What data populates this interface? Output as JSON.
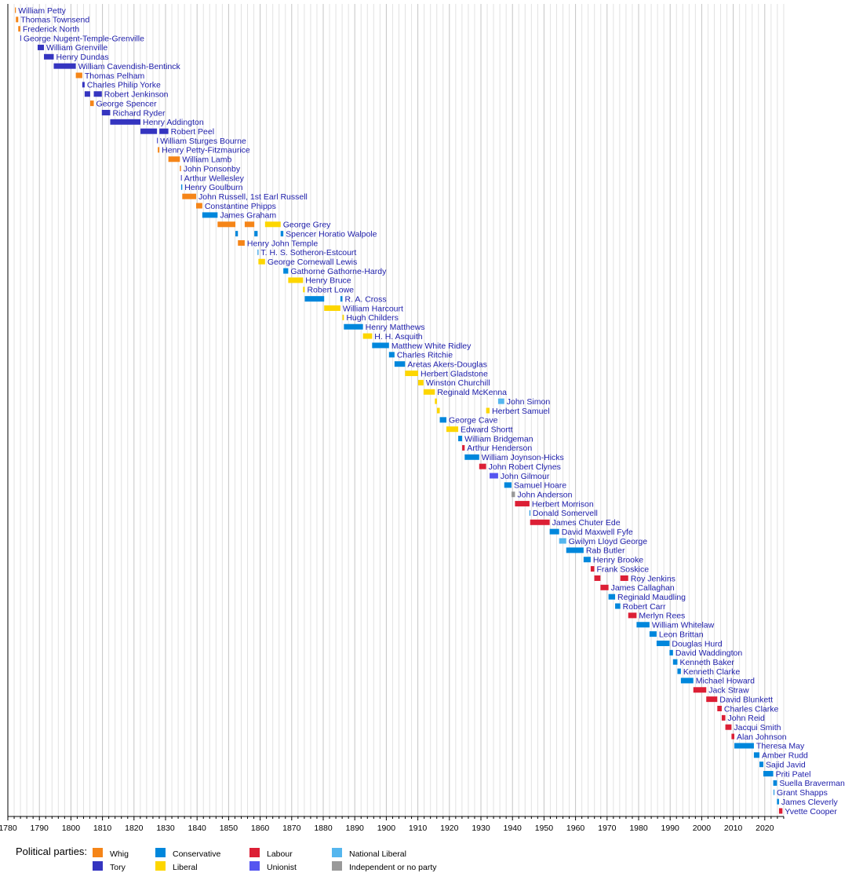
{
  "chart_data": {
    "type": "timeline",
    "title": "",
    "xlim": [
      1780,
      2026
    ],
    "x_ticks": [
      "1780",
      "1790",
      "1800",
      "1810",
      "1820",
      "1830",
      "1840",
      "1850",
      "1860",
      "1870",
      "1880",
      "1890",
      "1900",
      "1910",
      "1920",
      "1930",
      "1940",
      "1950",
      "1960",
      "1970",
      "1980",
      "1990",
      "2000",
      "2010",
      "2020"
    ],
    "grid": true,
    "legend": {
      "title": "Political parties:",
      "placement": "bottom-left",
      "entries": [
        {
          "name": "Whig",
          "color": "#f58518"
        },
        {
          "name": "Tory",
          "color": "#3535c0"
        },
        {
          "name": "Conservative",
          "color": "#0087dc"
        },
        {
          "name": "Liberal",
          "color": "#fdd600"
        },
        {
          "name": "Labour",
          "color": "#dc1f35"
        },
        {
          "name": "Unionist",
          "color": "#5555f0"
        },
        {
          "name": "National Liberal",
          "color": "#55b6ee"
        },
        {
          "name": "Independent or no party",
          "color": "#999999"
        }
      ]
    },
    "rows": [
      {
        "name": "William Petty",
        "segments": [
          [
            1782.25,
            1782.55,
            "Whig"
          ]
        ]
      },
      {
        "name": "Thomas Townsend",
        "segments": [
          [
            1782.55,
            1783.3,
            "Whig"
          ]
        ]
      },
      {
        "name": "Frederick North",
        "segments": [
          [
            1783.3,
            1783.95,
            "Whig"
          ]
        ]
      },
      {
        "name": "George Nugent-Temple-Grenville",
        "segments": [
          [
            1783.95,
            1784.0,
            "Tory"
          ]
        ]
      },
      {
        "name": "William Grenville",
        "segments": [
          [
            1789.45,
            1791.45,
            "Tory"
          ]
        ]
      },
      {
        "name": "Henry Dundas",
        "segments": [
          [
            1791.45,
            1794.55,
            "Tory"
          ]
        ]
      },
      {
        "name": "William Cavendish-Bentinck",
        "segments": [
          [
            1794.55,
            1801.55,
            "Tory"
          ]
        ]
      },
      {
        "name": "Thomas Pelham",
        "segments": [
          [
            1801.55,
            1803.6,
            "Whig"
          ]
        ]
      },
      {
        "name": "Charles Philip Yorke",
        "segments": [
          [
            1803.6,
            1804.35,
            "Tory"
          ]
        ]
      },
      {
        "name": "Robert Jenkinson",
        "segments": [
          [
            1804.35,
            1806.1,
            "Tory"
          ],
          [
            1807.25,
            1809.8,
            "Tory"
          ]
        ]
      },
      {
        "name": "George Spencer",
        "segments": [
          [
            1806.1,
            1807.25,
            "Whig"
          ]
        ]
      },
      {
        "name": "Richard Ryder",
        "segments": [
          [
            1809.8,
            1812.45,
            "Tory"
          ]
        ]
      },
      {
        "name": "Henry Addington",
        "segments": [
          [
            1812.45,
            1822.05,
            "Tory"
          ]
        ]
      },
      {
        "name": "Robert Peel",
        "segments": [
          [
            1822.05,
            1827.3,
            "Tory"
          ],
          [
            1828.05,
            1830.9,
            "Tory"
          ]
        ]
      },
      {
        "name": "William Sturges Bourne",
        "segments": [
          [
            1827.3,
            1827.55,
            "Tory"
          ]
        ]
      },
      {
        "name": "Henry Petty-Fitzmaurice",
        "segments": [
          [
            1827.55,
            1828.05,
            "Whig"
          ]
        ]
      },
      {
        "name": "William Lamb",
        "segments": [
          [
            1830.9,
            1834.55,
            "Whig"
          ]
        ]
      },
      {
        "name": "John Ponsonby",
        "segments": [
          [
            1834.55,
            1834.9,
            "Whig"
          ]
        ]
      },
      {
        "name": "Arthur Wellesley",
        "segments": [
          [
            1834.9,
            1834.95,
            "Tory"
          ]
        ]
      },
      {
        "name": "Henry Goulburn",
        "segments": [
          [
            1834.95,
            1835.3,
            "Conservative"
          ]
        ]
      },
      {
        "name": "John Russell, 1st Earl Russell",
        "segments": [
          [
            1835.3,
            1839.7,
            "Whig"
          ]
        ]
      },
      {
        "name": "Constantine Phipps",
        "segments": [
          [
            1839.7,
            1841.65,
            "Whig"
          ]
        ]
      },
      {
        "name": "James Graham",
        "segments": [
          [
            1841.65,
            1846.5,
            "Conservative"
          ]
        ]
      },
      {
        "name": "George Grey",
        "segments": [
          [
            1846.5,
            1852.15,
            "Whig"
          ],
          [
            1855.1,
            1858.15,
            "Whig"
          ],
          [
            1861.55,
            1866.5,
            "Liberal"
          ]
        ]
      },
      {
        "name": "Spencer Horatio Walpole",
        "segments": [
          [
            1852.15,
            1852.95,
            "Conservative"
          ],
          [
            1858.15,
            1859.2,
            "Conservative"
          ],
          [
            1866.5,
            1867.35,
            "Conservative"
          ]
        ]
      },
      {
        "name": "Henry John Temple",
        "segments": [
          [
            1852.95,
            1855.1,
            "Whig"
          ]
        ]
      },
      {
        "name": "T. H. S. Sotheron-Estcourt",
        "segments": [
          [
            1859.2,
            1859.45,
            "Conservative"
          ]
        ]
      },
      {
        "name": "George Cornewall Lewis",
        "segments": [
          [
            1859.45,
            1861.55,
            "Liberal"
          ]
        ]
      },
      {
        "name": "Gathorne Gathorne-Hardy",
        "segments": [
          [
            1867.35,
            1868.9,
            "Conservative"
          ]
        ]
      },
      {
        "name": "Henry Bruce",
        "segments": [
          [
            1868.9,
            1873.6,
            "Liberal"
          ]
        ]
      },
      {
        "name": "Robert Lowe",
        "segments": [
          [
            1873.6,
            1874.15,
            "Liberal"
          ]
        ]
      },
      {
        "name": "R. A. Cross",
        "segments": [
          [
            1874.15,
            1880.3,
            "Conservative"
          ],
          [
            1885.45,
            1886.1,
            "Conservative"
          ]
        ]
      },
      {
        "name": "William Harcourt",
        "segments": [
          [
            1880.3,
            1885.45,
            "Liberal"
          ]
        ]
      },
      {
        "name": "Hugh Childers",
        "segments": [
          [
            1886.1,
            1886.55,
            "Liberal"
          ]
        ]
      },
      {
        "name": "Henry Matthews",
        "segments": [
          [
            1886.55,
            1892.6,
            "Conservative"
          ]
        ]
      },
      {
        "name": "H. H. Asquith",
        "segments": [
          [
            1892.6,
            1895.5,
            "Liberal"
          ]
        ]
      },
      {
        "name": "Matthew White Ridley",
        "segments": [
          [
            1895.5,
            1900.85,
            "Conservative"
          ]
        ]
      },
      {
        "name": "Charles Ritchie",
        "segments": [
          [
            1900.85,
            1902.6,
            "Conservative"
          ]
        ]
      },
      {
        "name": "Aretas Akers-Douglas",
        "segments": [
          [
            1902.6,
            1905.95,
            "Conservative"
          ]
        ]
      },
      {
        "name": "Herbert Gladstone",
        "segments": [
          [
            1905.95,
            1910.1,
            "Liberal"
          ]
        ]
      },
      {
        "name": "Winston Churchill",
        "segments": [
          [
            1910.1,
            1911.8,
            "Liberal"
          ]
        ]
      },
      {
        "name": "Reginald McKenna",
        "segments": [
          [
            1911.8,
            1915.4,
            "Liberal"
          ]
        ]
      },
      {
        "name": "John Simon",
        "segments": [
          [
            1915.4,
            1916.05,
            "Liberal"
          ],
          [
            1935.45,
            1937.4,
            "National Liberal"
          ]
        ]
      },
      {
        "name": "Herbert Samuel",
        "segments": [
          [
            1916.05,
            1916.95,
            "Liberal"
          ],
          [
            1931.65,
            1932.75,
            "Liberal"
          ]
        ]
      },
      {
        "name": "George Cave",
        "segments": [
          [
            1916.95,
            1919.05,
            "Conservative"
          ]
        ]
      },
      {
        "name": "Edward Shortt",
        "segments": [
          [
            1919.05,
            1922.8,
            "Liberal"
          ]
        ]
      },
      {
        "name": "William Bridgeman",
        "segments": [
          [
            1922.8,
            1924.05,
            "Conservative"
          ]
        ]
      },
      {
        "name": "Arthur Henderson",
        "segments": [
          [
            1924.05,
            1924.85,
            "Labour"
          ]
        ]
      },
      {
        "name": "William Joynson-Hicks",
        "segments": [
          [
            1924.85,
            1929.45,
            "Conservative"
          ]
        ]
      },
      {
        "name": "John Robert Clynes",
        "segments": [
          [
            1929.45,
            1931.65,
            "Labour"
          ]
        ]
      },
      {
        "name": "John Gilmour",
        "segments": [
          [
            1932.75,
            1935.45,
            "Unionist"
          ]
        ]
      },
      {
        "name": "Samuel Hoare",
        "segments": [
          [
            1937.4,
            1939.7,
            "Conservative"
          ]
        ]
      },
      {
        "name": "John Anderson",
        "segments": [
          [
            1939.7,
            1940.8,
            "Independent or no party"
          ]
        ]
      },
      {
        "name": "Herbert Morrison",
        "segments": [
          [
            1940.8,
            1945.4,
            "Labour"
          ]
        ]
      },
      {
        "name": "Donald Somervell",
        "segments": [
          [
            1945.4,
            1945.6,
            "Conservative"
          ]
        ]
      },
      {
        "name": "James Chuter Ede",
        "segments": [
          [
            1945.6,
            1951.8,
            "Labour"
          ]
        ]
      },
      {
        "name": "David Maxwell Fyfe",
        "segments": [
          [
            1951.8,
            1954.8,
            "Conservative"
          ]
        ]
      },
      {
        "name": "Gwilym Lloyd George",
        "segments": [
          [
            1954.8,
            1957.05,
            "National Liberal"
          ]
        ]
      },
      {
        "name": "Rab Butler",
        "segments": [
          [
            1957.05,
            1962.55,
            "Conservative"
          ]
        ]
      },
      {
        "name": "Henry Brooke",
        "segments": [
          [
            1962.55,
            1964.8,
            "Conservative"
          ]
        ]
      },
      {
        "name": "Frank Soskice",
        "segments": [
          [
            1964.8,
            1965.95,
            "Labour"
          ]
        ]
      },
      {
        "name": "Roy Jenkins",
        "segments": [
          [
            1965.95,
            1967.9,
            "Labour"
          ],
          [
            1974.2,
            1976.7,
            "Labour"
          ]
        ]
      },
      {
        "name": "James Callaghan",
        "segments": [
          [
            1967.9,
            1970.45,
            "Labour"
          ]
        ]
      },
      {
        "name": "Reginald Maudling",
        "segments": [
          [
            1970.45,
            1972.55,
            "Conservative"
          ]
        ]
      },
      {
        "name": "Robert Carr",
        "segments": [
          [
            1972.55,
            1974.2,
            "Conservative"
          ]
        ]
      },
      {
        "name": "Merlyn Rees",
        "segments": [
          [
            1976.7,
            1979.35,
            "Labour"
          ]
        ]
      },
      {
        "name": "William Whitelaw",
        "segments": [
          [
            1979.35,
            1983.45,
            "Conservative"
          ]
        ]
      },
      {
        "name": "Leon Brittan",
        "segments": [
          [
            1983.45,
            1985.7,
            "Conservative"
          ]
        ]
      },
      {
        "name": "Douglas Hurd",
        "segments": [
          [
            1985.7,
            1989.8,
            "Conservative"
          ]
        ]
      },
      {
        "name": "David Waddington",
        "segments": [
          [
            1989.8,
            1990.9,
            "Conservative"
          ]
        ]
      },
      {
        "name": "Kenneth Baker",
        "segments": [
          [
            1990.9,
            1992.3,
            "Conservative"
          ]
        ]
      },
      {
        "name": "Kenneth Clarke",
        "segments": [
          [
            1992.3,
            1993.4,
            "Conservative"
          ]
        ]
      },
      {
        "name": "Michael Howard",
        "segments": [
          [
            1993.4,
            1997.35,
            "Conservative"
          ]
        ]
      },
      {
        "name": "Jack Straw",
        "segments": [
          [
            1997.35,
            2001.45,
            "Labour"
          ]
        ]
      },
      {
        "name": "David Blunkett",
        "segments": [
          [
            2001.45,
            2004.95,
            "Labour"
          ]
        ]
      },
      {
        "name": "Charles Clarke",
        "segments": [
          [
            2004.95,
            2006.35,
            "Labour"
          ]
        ]
      },
      {
        "name": "John Reid",
        "segments": [
          [
            2006.35,
            2007.5,
            "Labour"
          ]
        ]
      },
      {
        "name": "Jacqui Smith",
        "segments": [
          [
            2007.5,
            2009.45,
            "Labour"
          ]
        ]
      },
      {
        "name": "Alan Johnson",
        "segments": [
          [
            2009.45,
            2010.35,
            "Labour"
          ]
        ]
      },
      {
        "name": "Theresa May",
        "segments": [
          [
            2010.35,
            2016.55,
            "Conservative"
          ]
        ]
      },
      {
        "name": "Amber Rudd",
        "segments": [
          [
            2016.55,
            2018.3,
            "Conservative"
          ]
        ]
      },
      {
        "name": "Sajid Javid",
        "segments": [
          [
            2018.3,
            2019.55,
            "Conservative"
          ]
        ]
      },
      {
        "name": "Priti Patel",
        "segments": [
          [
            2019.55,
            2022.68,
            "Conservative"
          ]
        ]
      },
      {
        "name": "Suella Braverman",
        "segments": [
          [
            2022.68,
            2022.8,
            "Conservative"
          ],
          [
            2022.82,
            2023.87,
            "Conservative"
          ]
        ]
      },
      {
        "name": "Grant Shapps",
        "segments": [
          [
            2022.8,
            2022.82,
            "Conservative"
          ]
        ]
      },
      {
        "name": "James Cleverly",
        "segments": [
          [
            2023.87,
            2024.51,
            "Conservative"
          ]
        ]
      },
      {
        "name": "Yvette Cooper",
        "segments": [
          [
            2024.51,
            2025.6,
            "Labour"
          ]
        ]
      }
    ]
  }
}
